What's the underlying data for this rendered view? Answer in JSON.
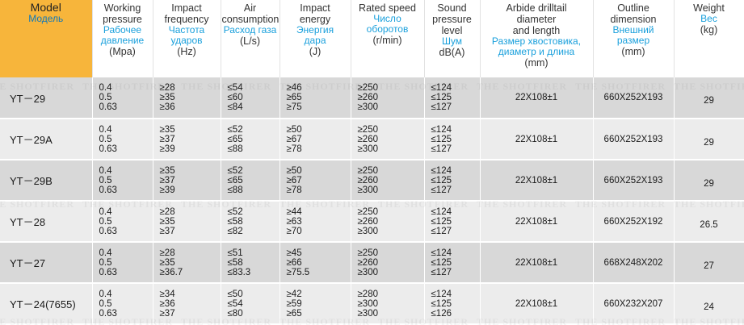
{
  "headers": {
    "model": {
      "en": "Model",
      "ru": "Модель"
    },
    "working_pressure": {
      "en": "Working\npressure",
      "ru": "Рабочее\nдавление",
      "unit": "(Mpa)"
    },
    "impact_frequency": {
      "en": "Impact\nfrequency",
      "ru": "Частота\nударов",
      "unit": "(Hz)"
    },
    "air_consumption": {
      "en": "Air\nconsumption",
      "ru": "Расход газа",
      "unit": "(L/s)"
    },
    "impact_energy": {
      "en": "Impact\nenergy",
      "ru": "Энергия\nдара",
      "unit": "(J)"
    },
    "rated_speed": {
      "en": "Rated speed",
      "ru": "Число\nоборотов",
      "unit": "(r/min)"
    },
    "sound_pressure": {
      "en": "Sound\npressure\nlevel",
      "ru": "Шум",
      "unit": "dB(A)"
    },
    "drilltail": {
      "en": "Arbide drilltail\ndiameter\nand length",
      "ru": "Размер хвостовика,\nдиаметр и длина",
      "unit": "(mm)"
    },
    "outline": {
      "en": "Outline\ndimension",
      "ru": "Внешний\nразмер",
      "unit": "(mm)"
    },
    "weight": {
      "en": "Weight",
      "ru": "Вес",
      "unit": "(kg)"
    }
  },
  "rows": [
    {
      "model": "YT－29",
      "pressure": [
        "0.4",
        "0.5",
        "0.63"
      ],
      "frequency": [
        "≥28",
        "≥35",
        "≥36"
      ],
      "air": [
        "≤54",
        "≤60",
        "≤84"
      ],
      "energy": [
        "≥46",
        "≥65",
        "≥75"
      ],
      "speed": [
        "≥250",
        "≥260",
        "≥300"
      ],
      "sound": [
        "≤124",
        "≤125",
        "≤127"
      ],
      "drilltail": "22X108±1",
      "outline": "660X252X193",
      "weight": "29"
    },
    {
      "model": "YT－29A",
      "pressure": [
        "0.4",
        "0.5",
        "0.63"
      ],
      "frequency": [
        "≥35",
        "≥37",
        "≥39"
      ],
      "air": [
        "≤52",
        "≤65",
        "≤88"
      ],
      "energy": [
        "≥50",
        "≥67",
        "≥78"
      ],
      "speed": [
        "≥250",
        "≥260",
        "≥300"
      ],
      "sound": [
        "≤124",
        "≤125",
        "≤127"
      ],
      "drilltail": "22X108±1",
      "outline": "660X252X193",
      "weight": "29"
    },
    {
      "model": "YT－29B",
      "pressure": [
        "0.4",
        "0.5",
        "0.63"
      ],
      "frequency": [
        "≥35",
        "≥37",
        "≥39"
      ],
      "air": [
        "≤52",
        "≤65",
        "≤88"
      ],
      "energy": [
        "≥50",
        "≥67",
        "≥78"
      ],
      "speed": [
        "≥250",
        "≥260",
        "≥300"
      ],
      "sound": [
        "≤124",
        "≤125",
        "≤127"
      ],
      "drilltail": "22X108±1",
      "outline": "660X252X193",
      "weight": "29"
    },
    {
      "model": "YT－28",
      "pressure": [
        "0.4",
        "0.5",
        "0.63"
      ],
      "frequency": [
        "≥28",
        "≥35",
        "≥37"
      ],
      "air": [
        "≤52",
        "≤58",
        "≤82"
      ],
      "energy": [
        "≥44",
        "≥63",
        "≥70"
      ],
      "speed": [
        "≥250",
        "≥260",
        "≥300"
      ],
      "sound": [
        "≤124",
        "≤125",
        "≤127"
      ],
      "drilltail": "22X108±1",
      "outline": "660X252X192",
      "weight": "26.5"
    },
    {
      "model": "YT－27",
      "pressure": [
        "0.4",
        "0.5",
        "0.63"
      ],
      "frequency": [
        "≥28",
        "≥35",
        "≥36.7"
      ],
      "air": [
        "≤51",
        "≤58",
        "≤83.3"
      ],
      "energy": [
        "≥45",
        "≥66",
        "≥75.5"
      ],
      "speed": [
        "≥250",
        "≥260",
        "≥300"
      ],
      "sound": [
        "≤124",
        "≤125",
        "≤127"
      ],
      "drilltail": "22X108±1",
      "outline": "668X248X202",
      "weight": "27"
    },
    {
      "model": "YT－24(7655)",
      "pressure": [
        "0.4",
        "0.5",
        "0.63"
      ],
      "frequency": [
        "≥34",
        "≥36",
        "≥37"
      ],
      "air": [
        "≤50",
        "≤54",
        "≤80"
      ],
      "energy": [
        "≥42",
        "≥59",
        "≥65"
      ],
      "speed": [
        "≥280",
        "≥300",
        "≥300"
      ],
      "sound": [
        "≤124",
        "≤125",
        "≤126"
      ],
      "drilltail": "22X108±1",
      "outline": "660X232X207",
      "weight": "24"
    }
  ],
  "watermark": "THE SHOTFIRER"
}
